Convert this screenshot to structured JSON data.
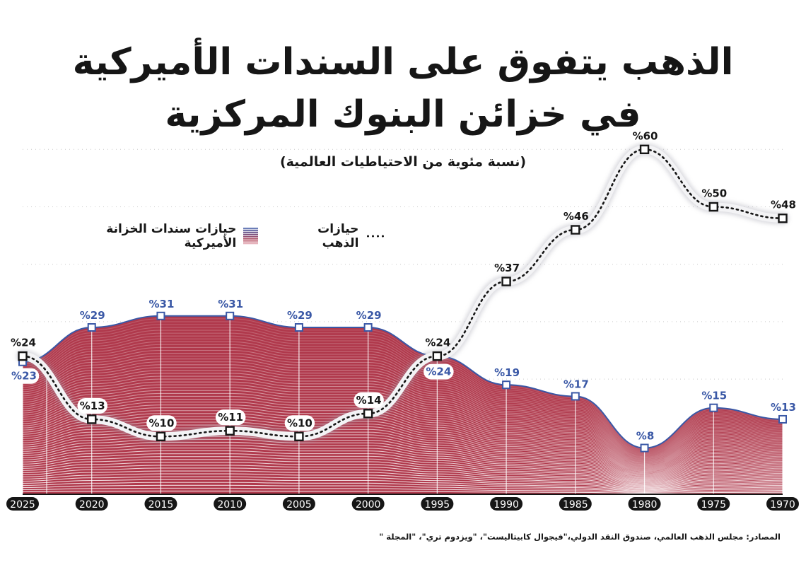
{
  "header": {
    "title_line1": "الذهب يتفوق على السندات الأميركية",
    "title_line2": "في خزائن البنوك المركزية",
    "subtitle": "(نسبة مئوية من الاحتياطيات العالمية)"
  },
  "legend": {
    "gold_label": "حيازات الذهب",
    "treasury_label": "حيازات سندات الخزانة الأميركية"
  },
  "footer": {
    "source": "المصادر: مجلس الذهب العالمي، صندوق النقد الدولي،\"فيجوال كابيتاليست\"، \"ويزدوم تري\"، \"المجلة \""
  },
  "colors": {
    "treasury_top": "#3a58a6",
    "treasury_bottom": "#b0394c",
    "gold_line": "#161616",
    "year_pill": "#161616"
  },
  "chart_data": {
    "type": "area",
    "title": "الذهب يتفوق على السندات الأميركية في خزائن البنوك المركزية",
    "subtitle": "(نسبة مئوية من الاحتياطيات العالمية)",
    "xlabel": "",
    "ylabel": "نسبة مئوية من الاحتياطيات العالمية",
    "x": [
      "2025",
      "2020",
      "2015",
      "2010",
      "2005",
      "2000",
      "1995",
      "1990",
      "1985",
      "1980",
      "1975",
      "1970"
    ],
    "ylim": [
      0,
      60
    ],
    "grid": true,
    "legend_position": "top-left",
    "value_prefix": "%",
    "series": [
      {
        "name": "حيازات الذهب",
        "style": "dotted-line",
        "values": [
          24,
          13,
          10,
          11,
          10,
          14,
          24,
          37,
          46,
          60,
          50,
          48
        ]
      },
      {
        "name": "حيازات سندات الخزانة الأميركية",
        "style": "gradient-area",
        "values": [
          23,
          29,
          31,
          31,
          29,
          29,
          24,
          19,
          17,
          8,
          15,
          13
        ]
      }
    ]
  }
}
